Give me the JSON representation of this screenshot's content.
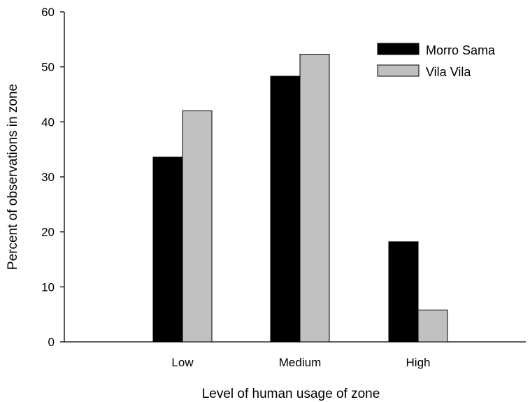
{
  "chart_data": {
    "type": "bar",
    "title": "",
    "xlabel": "Level of human usage of zone",
    "ylabel": "Percent of observations in zone",
    "categories": [
      "Low",
      "Medium",
      "High"
    ],
    "series": [
      {
        "name": "Morro Sama",
        "values": [
          33.6,
          48.3,
          18.2
        ],
        "color": "#000000"
      },
      {
        "name": "Vila Vila",
        "values": [
          42.0,
          52.3,
          5.8
        ],
        "color": "#c0c0c0"
      }
    ],
    "ylim": [
      0,
      60
    ],
    "yticks": [
      "0",
      "10",
      "20",
      "30",
      "40",
      "50",
      "60"
    ],
    "grid": false,
    "legend_position": "top-right"
  }
}
